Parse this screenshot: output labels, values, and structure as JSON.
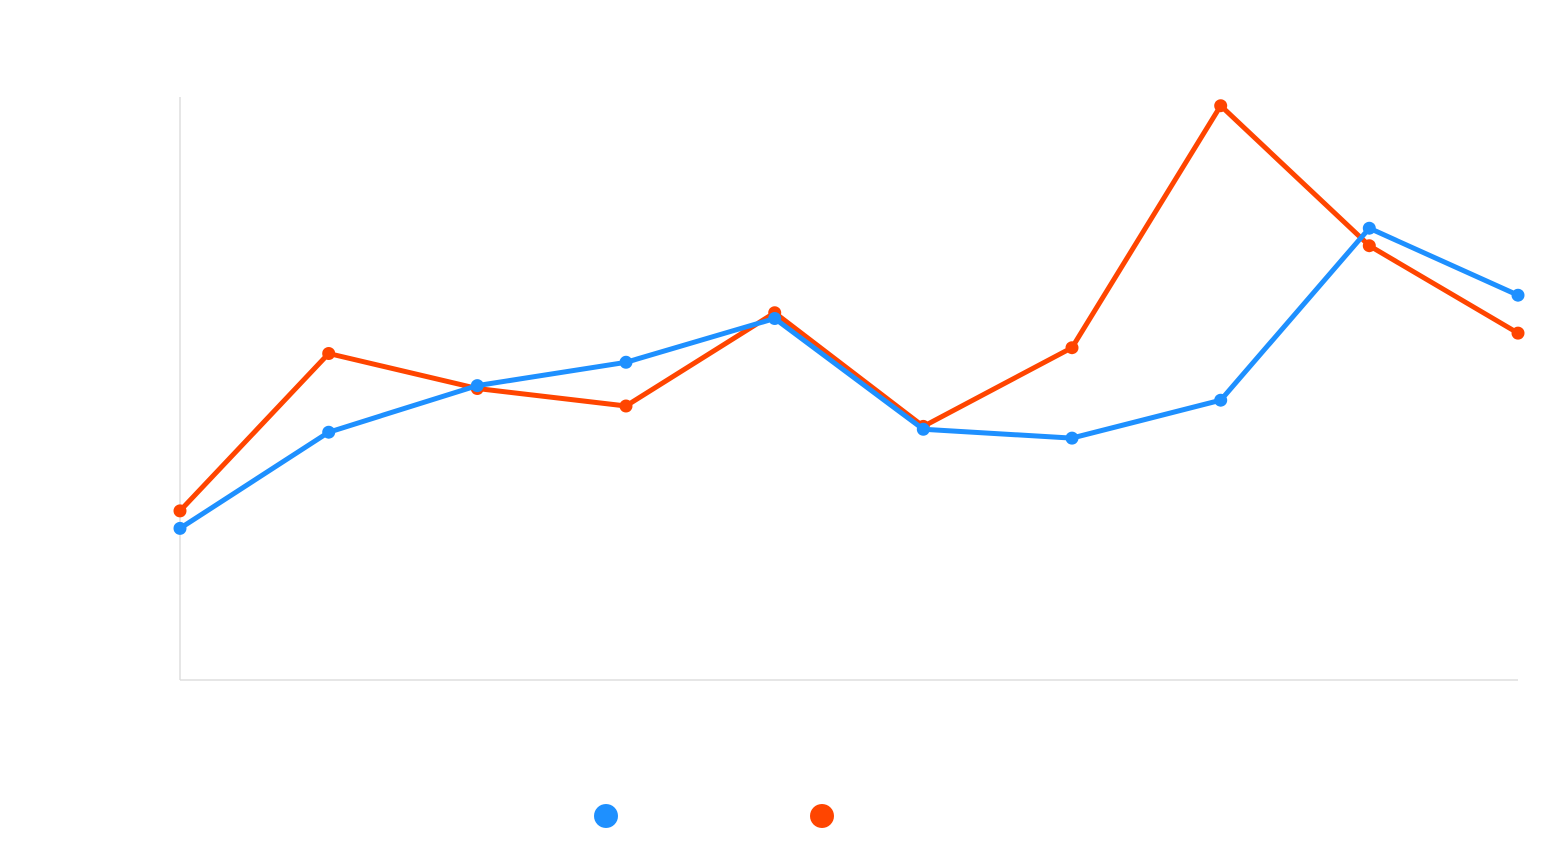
{
  "chart_data": {
    "type": "line",
    "title": "",
    "xlabel": "",
    "ylabel": "",
    "categories": [
      "",
      "",
      "",
      "",
      "",
      "",
      "",
      "",
      "",
      ""
    ],
    "ylim": [
      0,
      100
    ],
    "grid": false,
    "legend_position": "bottom",
    "series": [
      {
        "color": "#1e90ff",
        "values": [
          26,
          42.5,
          50.5,
          54.5,
          62,
          43,
          41.5,
          48,
          77.5,
          66
        ]
      },
      {
        "color": "#ff4500",
        "values": [
          29,
          56,
          50,
          47,
          63,
          43.5,
          57,
          98.5,
          74.5,
          59.5
        ]
      }
    ],
    "draw_order": [
      1,
      0
    ]
  }
}
